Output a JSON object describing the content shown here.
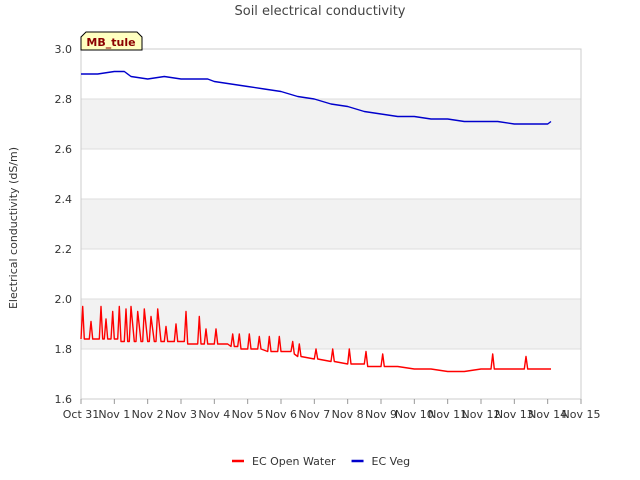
{
  "chart_data": {
    "type": "line",
    "title": "Soil electrical conductivity",
    "site_label": "MB_tule",
    "xlabel": "",
    "ylabel": "Electrical conductivity (dS/m)",
    "xlim": [
      0,
      15
    ],
    "ylim": [
      1.6,
      3.0
    ],
    "x_ticks": [
      0,
      1,
      2,
      3,
      4,
      5,
      6,
      7,
      8,
      9,
      10,
      11,
      12,
      13,
      14,
      15
    ],
    "x_tick_labels": [
      "Oct 31",
      "Nov 1",
      "Nov 2",
      "Nov 3",
      "Nov 4",
      "Nov 5",
      "Nov 6",
      "Nov 7",
      "Nov 8",
      "Nov 9",
      "Nov 10",
      "Nov 11",
      "Nov 12",
      "Nov 13",
      "Nov 14",
      "Nov 15"
    ],
    "y_ticks": [
      1.6,
      1.8,
      2.0,
      2.2,
      2.4,
      2.6,
      2.8,
      3.0
    ],
    "y_tick_labels": [
      "1.6",
      "1.8",
      "2.0",
      "2.2",
      "2.4",
      "2.6",
      "2.8",
      "3.0"
    ],
    "legend_position": "bottom-center",
    "colors": {
      "band": "#f2f2f2",
      "grid": "#dddddd",
      "badge_fill": "#ffffc0"
    },
    "series": [
      {
        "name": "EC Open Water",
        "color": "#ff0000",
        "x": [
          0.0,
          0.05,
          0.1,
          0.25,
          0.3,
          0.35,
          0.4,
          0.55,
          0.6,
          0.65,
          0.7,
          0.75,
          0.8,
          0.9,
          0.95,
          1.0,
          1.1,
          1.15,
          1.2,
          1.3,
          1.35,
          1.4,
          1.45,
          1.5,
          1.6,
          1.65,
          1.7,
          1.8,
          1.85,
          1.9,
          2.0,
          2.05,
          2.1,
          2.2,
          2.25,
          2.3,
          2.4,
          2.5,
          2.55,
          2.6,
          2.7,
          2.8,
          2.85,
          2.9,
          3.0,
          3.1,
          3.15,
          3.2,
          3.3,
          3.4,
          3.5,
          3.55,
          3.6,
          3.7,
          3.75,
          3.8,
          3.9,
          4.0,
          4.05,
          4.1,
          4.2,
          4.3,
          4.4,
          4.5,
          4.55,
          4.6,
          4.7,
          4.75,
          4.8,
          5.0,
          5.05,
          5.1,
          5.3,
          5.35,
          5.4,
          5.6,
          5.65,
          5.7,
          5.9,
          5.95,
          6.0,
          6.3,
          6.35,
          6.4,
          6.5,
          6.55,
          6.6,
          7.0,
          7.05,
          7.1,
          7.5,
          7.55,
          7.6,
          8.0,
          8.05,
          8.1,
          8.5,
          8.55,
          8.6,
          9.0,
          9.05,
          9.1,
          9.5,
          10.0,
          10.5,
          11.0,
          11.5,
          12.0,
          12.3,
          12.35,
          12.4,
          13.0,
          13.3,
          13.35,
          13.4,
          14.0,
          14.1
        ],
        "values": [
          1.84,
          1.97,
          1.84,
          1.84,
          1.91,
          1.84,
          1.84,
          1.84,
          1.97,
          1.84,
          1.84,
          1.92,
          1.84,
          1.84,
          1.95,
          1.84,
          1.84,
          1.97,
          1.83,
          1.83,
          1.96,
          1.83,
          1.83,
          1.97,
          1.83,
          1.83,
          1.95,
          1.83,
          1.83,
          1.96,
          1.83,
          1.83,
          1.93,
          1.83,
          1.83,
          1.96,
          1.83,
          1.83,
          1.89,
          1.83,
          1.83,
          1.83,
          1.9,
          1.83,
          1.83,
          1.83,
          1.95,
          1.82,
          1.82,
          1.82,
          1.82,
          1.93,
          1.82,
          1.82,
          1.88,
          1.82,
          1.82,
          1.82,
          1.88,
          1.82,
          1.82,
          1.82,
          1.82,
          1.81,
          1.86,
          1.81,
          1.81,
          1.86,
          1.8,
          1.8,
          1.86,
          1.8,
          1.8,
          1.85,
          1.8,
          1.79,
          1.85,
          1.79,
          1.79,
          1.85,
          1.79,
          1.79,
          1.83,
          1.78,
          1.77,
          1.82,
          1.77,
          1.76,
          1.8,
          1.76,
          1.75,
          1.8,
          1.75,
          1.74,
          1.8,
          1.74,
          1.74,
          1.79,
          1.73,
          1.73,
          1.78,
          1.73,
          1.73,
          1.72,
          1.72,
          1.71,
          1.71,
          1.72,
          1.72,
          1.78,
          1.72,
          1.72,
          1.72,
          1.77,
          1.72,
          1.72,
          1.72
        ]
      },
      {
        "name": "EC Veg",
        "color": "#0000cc",
        "x": [
          0.0,
          0.5,
          1.0,
          1.3,
          1.5,
          2.0,
          2.5,
          3.0,
          3.5,
          3.8,
          4.0,
          4.5,
          5.0,
          5.5,
          6.0,
          6.5,
          7.0,
          7.5,
          8.0,
          8.5,
          9.0,
          9.5,
          10.0,
          10.5,
          11.0,
          11.5,
          12.0,
          12.5,
          13.0,
          13.5,
          14.0,
          14.1
        ],
        "values": [
          2.9,
          2.9,
          2.91,
          2.91,
          2.89,
          2.88,
          2.89,
          2.88,
          2.88,
          2.88,
          2.87,
          2.86,
          2.85,
          2.84,
          2.83,
          2.81,
          2.8,
          2.78,
          2.77,
          2.75,
          2.74,
          2.73,
          2.73,
          2.72,
          2.72,
          2.71,
          2.71,
          2.71,
          2.7,
          2.7,
          2.7,
          2.71
        ]
      }
    ]
  }
}
